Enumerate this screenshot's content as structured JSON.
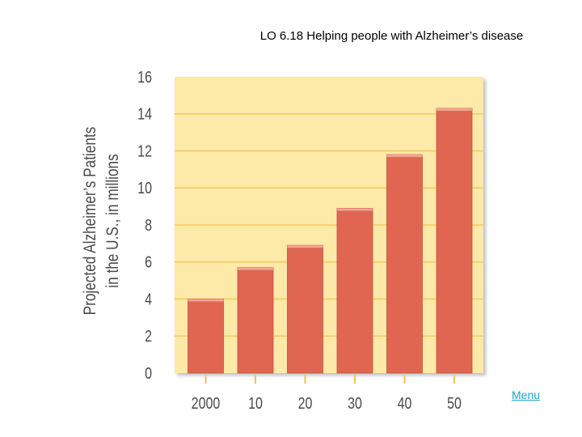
{
  "slide": {
    "title": "LO 6.18  Helping people with Alzheimer’s disease",
    "menu_link": "Menu"
  },
  "colors": {
    "plot_background": "#fde9a8",
    "gridline": "#f3c95c",
    "bar_fill": "#e06652",
    "bar_top": "#f0a596",
    "axis_text": "#4a4a4a",
    "tick_mark": "#f1c24c",
    "link": "#1fa3c4"
  },
  "chart_data": {
    "type": "bar",
    "title": "",
    "ylabel": [
      "Projected Alzheimer’s Patients",
      "in the U.S., in millions"
    ],
    "xlabel": "",
    "categories": [
      "2000",
      "10",
      "20",
      "30",
      "40",
      "50"
    ],
    "values": [
      4,
      5.7,
      6.9,
      8.9,
      11.8,
      14.3
    ],
    "ylim": [
      0,
      16
    ],
    "yticks": [
      "0",
      "2",
      "4",
      "6",
      "8",
      "10",
      "12",
      "14",
      "16"
    ],
    "grid": true,
    "legend": "none"
  }
}
